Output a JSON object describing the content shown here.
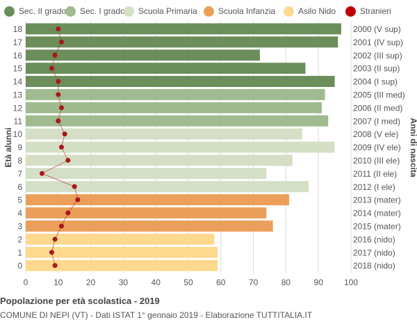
{
  "legend": [
    {
      "label": "Sec. II grado",
      "color": "#6b8e5a"
    },
    {
      "label": "Sec. I grado",
      "color": "#9fbb8f"
    },
    {
      "label": "Scuola Primaria",
      "color": "#d4dfc6"
    },
    {
      "label": "Scuola Infanzia",
      "color": "#eb9f5a"
    },
    {
      "label": "Asilo Nido",
      "color": "#fdd98e"
    },
    {
      "label": "Stranieri",
      "color": "#c00000"
    }
  ],
  "axis_titles": {
    "left": "Età alunni",
    "right": "Anni di nascita"
  },
  "footer": {
    "title": "Popolazione per età scolastica - 2019",
    "subtitle": "COMUNE DI NEPI (VT) - Dati ISTAT 1° gennaio 2019 - Elaborazione TUTTITALIA.IT"
  },
  "chart_data": {
    "type": "bar",
    "orientation": "horizontal",
    "xlim": [
      0,
      100
    ],
    "x_ticks": [
      0,
      10,
      20,
      30,
      40,
      50,
      60,
      70,
      80,
      90,
      100
    ],
    "grid": true,
    "legend_position": "top",
    "categories": [
      "18",
      "17",
      "16",
      "15",
      "14",
      "13",
      "12",
      "11",
      "10",
      "9",
      "8",
      "7",
      "6",
      "5",
      "4",
      "3",
      "2",
      "1",
      "0"
    ],
    "birth_years": [
      "2000 (V sup)",
      "2001 (IV sup)",
      "2002 (III sup)",
      "2003 (II sup)",
      "2004 (I sup)",
      "2005 (III med)",
      "2006 (II med)",
      "2007 (I med)",
      "2008 (V ele)",
      "2009 (IV ele)",
      "2010 (III ele)",
      "2011 (II ele)",
      "2012 (I ele)",
      "2013 (mater)",
      "2014 (mater)",
      "2015 (mater)",
      "2016 (nido)",
      "2017 (nido)",
      "2018 (nido)"
    ],
    "values": [
      97,
      96,
      72,
      86,
      95,
      92,
      91,
      93,
      85,
      95,
      82,
      74,
      87,
      81,
      74,
      76,
      58,
      59,
      59
    ],
    "groups": [
      "Sec. II grado",
      "Sec. II grado",
      "Sec. II grado",
      "Sec. II grado",
      "Sec. II grado",
      "Sec. I grado",
      "Sec. I grado",
      "Sec. I grado",
      "Scuola Primaria",
      "Scuola Primaria",
      "Scuola Primaria",
      "Scuola Primaria",
      "Scuola Primaria",
      "Scuola Infanzia",
      "Scuola Infanzia",
      "Scuola Infanzia",
      "Asilo Nido",
      "Asilo Nido",
      "Asilo Nido"
    ],
    "stranieri": [
      10,
      11,
      9,
      8,
      10,
      10,
      11,
      10,
      12,
      11,
      13,
      5,
      15,
      16,
      13,
      11,
      9,
      8,
      9
    ]
  }
}
